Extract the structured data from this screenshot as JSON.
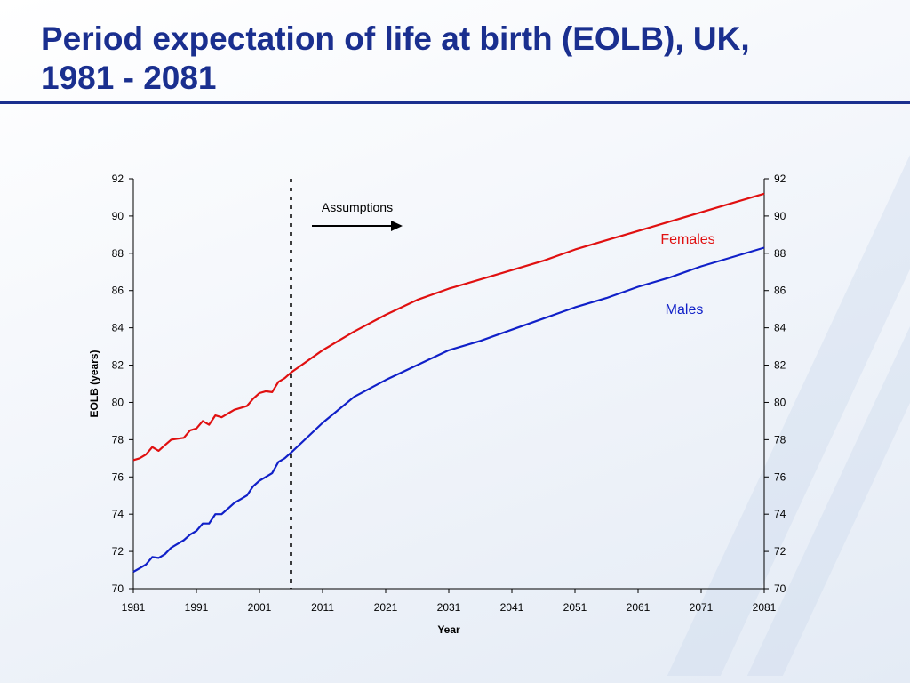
{
  "slide": {
    "title_line1": "Period expectation of life at birth (EOLB), UK,",
    "title_line2": "1981 - 2081"
  },
  "colors": {
    "title": "#1a2f8f",
    "females": "#e01010",
    "males": "#1020c8",
    "axis": "#000000"
  },
  "chart_data": {
    "type": "line",
    "xlabel": "Year",
    "ylabel": "EOLB (years)",
    "xlim": [
      1981,
      2081
    ],
    "ylim": [
      70,
      92
    ],
    "x_ticks": [
      1981,
      1991,
      2001,
      2011,
      2021,
      2031,
      2041,
      2051,
      2061,
      2071,
      2081
    ],
    "y_ticks": [
      70,
      72,
      74,
      76,
      78,
      80,
      82,
      84,
      86,
      88,
      90,
      92
    ],
    "grid": false,
    "secondary_y_axis": true,
    "projection_start_year": 2006,
    "annotation": {
      "text": "Assumptions",
      "arrow": "right"
    },
    "series": [
      {
        "name": "Females",
        "color": "#e01010",
        "points": [
          [
            1981,
            76.9
          ],
          [
            1982,
            77.0
          ],
          [
            1983,
            77.2
          ],
          [
            1984,
            77.6
          ],
          [
            1985,
            77.4
          ],
          [
            1986,
            77.7
          ],
          [
            1987,
            78.0
          ],
          [
            1988,
            78.05
          ],
          [
            1989,
            78.1
          ],
          [
            1990,
            78.5
          ],
          [
            1991,
            78.6
          ],
          [
            1992,
            79.0
          ],
          [
            1993,
            78.8
          ],
          [
            1994,
            79.3
          ],
          [
            1995,
            79.2
          ],
          [
            1996,
            79.4
          ],
          [
            1997,
            79.6
          ],
          [
            1998,
            79.7
          ],
          [
            1999,
            79.8
          ],
          [
            2000,
            80.2
          ],
          [
            2001,
            80.5
          ],
          [
            2002,
            80.6
          ],
          [
            2003,
            80.55
          ],
          [
            2004,
            81.1
          ],
          [
            2005,
            81.3
          ],
          [
            2006,
            81.6
          ],
          [
            2011,
            82.8
          ],
          [
            2016,
            83.8
          ],
          [
            2021,
            84.7
          ],
          [
            2026,
            85.5
          ],
          [
            2031,
            86.1
          ],
          [
            2036,
            86.6
          ],
          [
            2041,
            87.1
          ],
          [
            2046,
            87.6
          ],
          [
            2051,
            88.2
          ],
          [
            2056,
            88.7
          ],
          [
            2061,
            89.2
          ],
          [
            2066,
            89.7
          ],
          [
            2071,
            90.2
          ],
          [
            2076,
            90.7
          ],
          [
            2081,
            91.2
          ]
        ]
      },
      {
        "name": "Males",
        "color": "#1020c8",
        "points": [
          [
            1981,
            70.9
          ],
          [
            1982,
            71.1
          ],
          [
            1983,
            71.3
          ],
          [
            1984,
            71.7
          ],
          [
            1985,
            71.65
          ],
          [
            1986,
            71.85
          ],
          [
            1987,
            72.2
          ],
          [
            1988,
            72.4
          ],
          [
            1989,
            72.6
          ],
          [
            1990,
            72.9
          ],
          [
            1991,
            73.1
          ],
          [
            1992,
            73.5
          ],
          [
            1993,
            73.5
          ],
          [
            1994,
            74.0
          ],
          [
            1995,
            74.0
          ],
          [
            1996,
            74.3
          ],
          [
            1997,
            74.6
          ],
          [
            1998,
            74.8
          ],
          [
            1999,
            75.0
          ],
          [
            2000,
            75.5
          ],
          [
            2001,
            75.8
          ],
          [
            2002,
            76.0
          ],
          [
            2003,
            76.2
          ],
          [
            2004,
            76.8
          ],
          [
            2005,
            77.0
          ],
          [
            2006,
            77.3
          ],
          [
            2011,
            78.9
          ],
          [
            2016,
            80.3
          ],
          [
            2021,
            81.2
          ],
          [
            2026,
            82.0
          ],
          [
            2031,
            82.8
          ],
          [
            2036,
            83.3
          ],
          [
            2041,
            83.9
          ],
          [
            2046,
            84.5
          ],
          [
            2051,
            85.1
          ],
          [
            2056,
            85.6
          ],
          [
            2061,
            86.2
          ],
          [
            2066,
            86.7
          ],
          [
            2071,
            87.3
          ],
          [
            2076,
            87.8
          ],
          [
            2081,
            88.3
          ]
        ]
      }
    ]
  }
}
